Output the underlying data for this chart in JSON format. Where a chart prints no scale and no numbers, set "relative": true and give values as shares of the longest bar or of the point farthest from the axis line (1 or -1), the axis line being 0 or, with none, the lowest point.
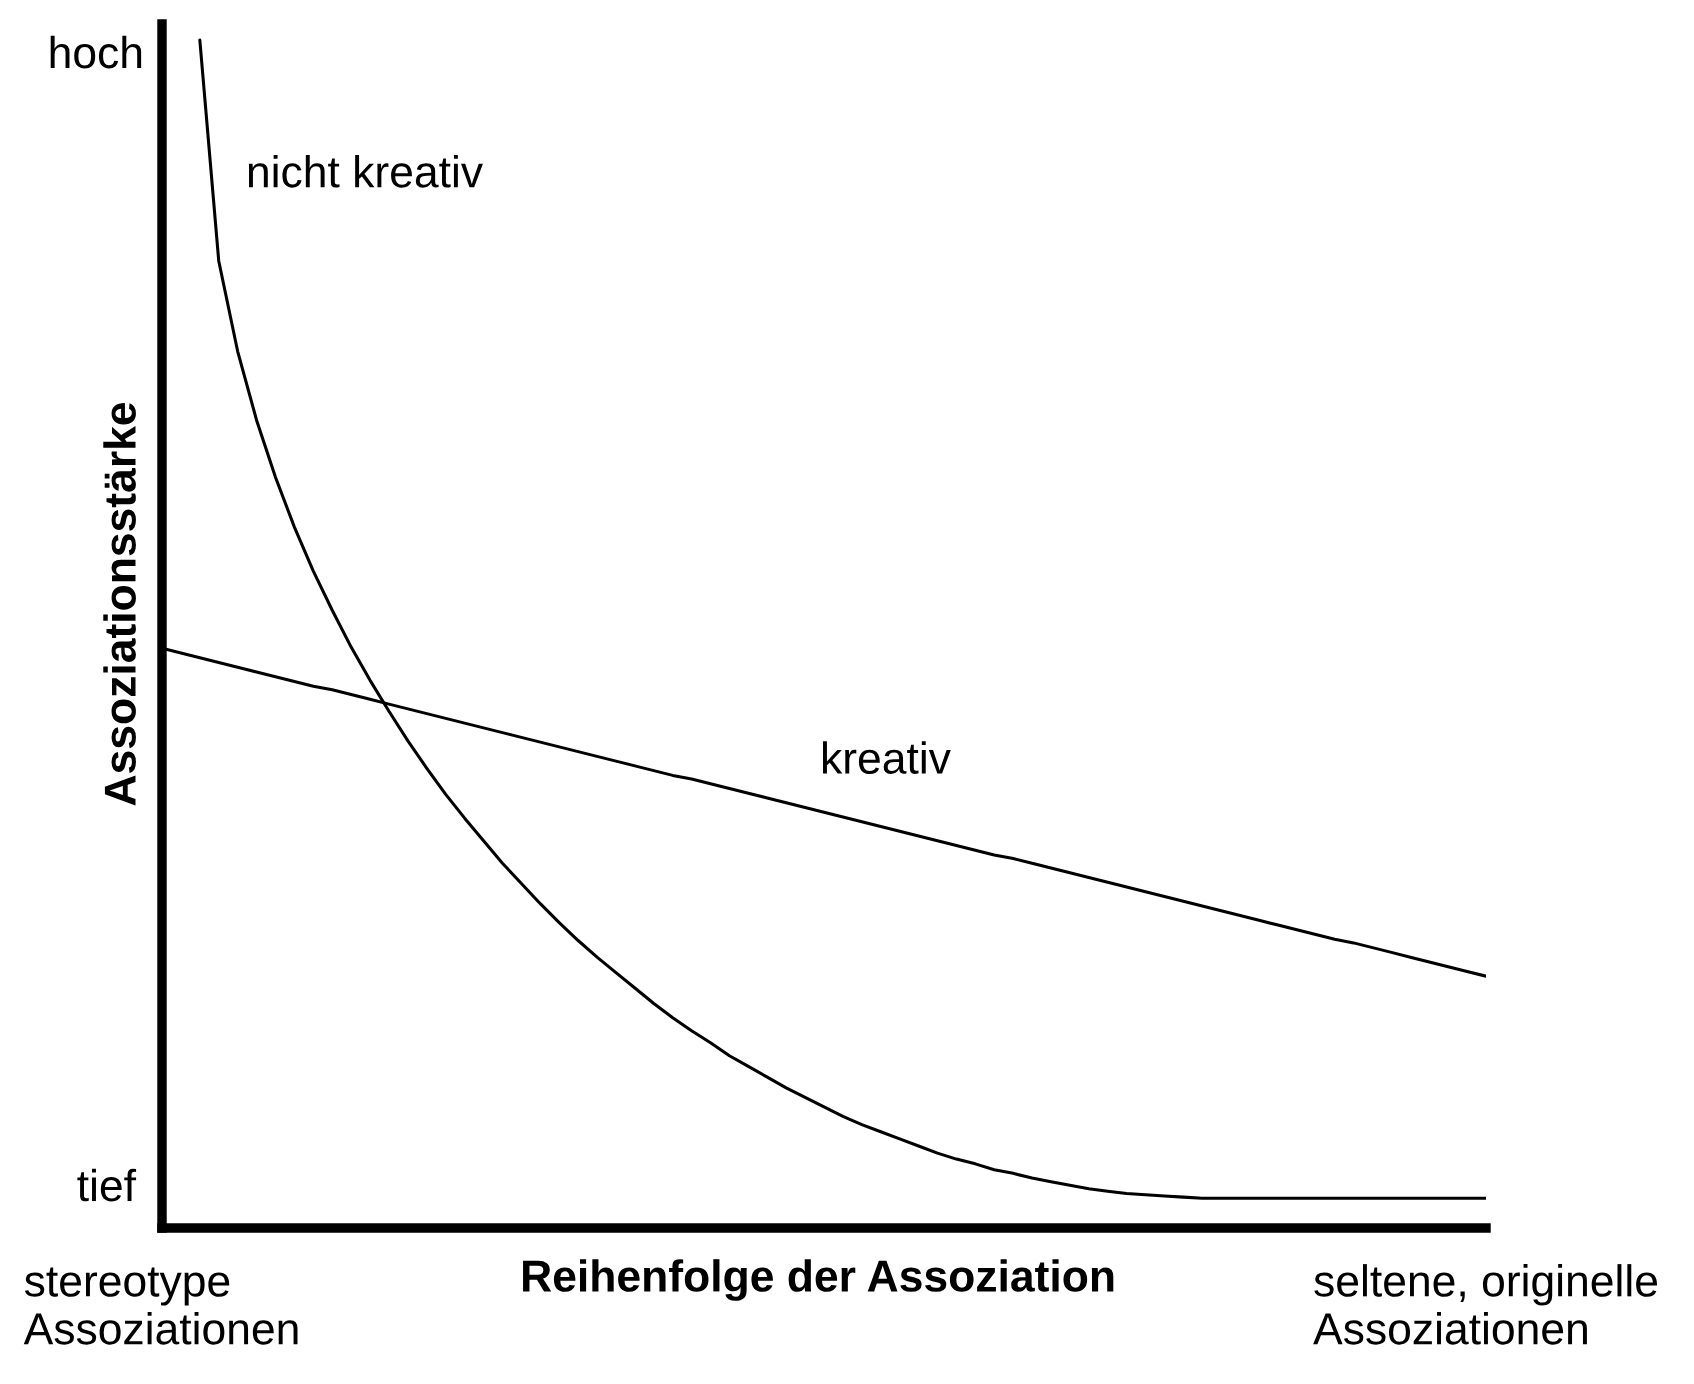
{
  "chart_data": {
    "type": "line",
    "relative": true,
    "xlabel": "Reihenfolge der Assoziation",
    "ylabel": "Assoziationsstärke",
    "annotations": [
      "hoch",
      "tief"
    ],
    "categories": [
      "stereotype\nAssoziationen",
      null,
      null,
      null,
      null,
      null,
      null,
      null,
      null,
      null,
      null,
      null,
      null,
      null,
      null,
      null,
      null,
      null,
      null,
      null,
      null,
      null,
      null,
      null,
      null,
      null,
      null,
      null,
      null,
      null,
      null,
      null,
      null,
      null,
      null,
      null,
      null,
      null,
      null,
      null,
      null,
      null,
      null,
      null,
      null,
      null,
      null,
      null,
      null,
      null,
      null,
      null,
      null,
      null,
      null,
      null,
      null,
      null,
      null,
      null,
      null,
      null,
      null,
      null,
      null,
      null,
      null,
      null,
      null,
      null,
      "seltene, originelle\nAssoziationen"
    ],
    "series": [
      {
        "name": "nicht kreativ",
        "color": "#000000",
        "values": [
          null,
          null,
          1.0,
          0.814,
          0.738,
          0.68,
          0.632,
          0.59,
          0.553,
          0.52,
          0.489,
          0.461,
          0.435,
          0.41,
          0.387,
          0.365,
          0.345,
          0.326,
          0.307,
          0.29,
          0.273,
          0.257,
          0.242,
          0.228,
          0.215,
          0.202,
          0.189,
          0.177,
          0.166,
          0.156,
          0.145,
          0.136,
          0.127,
          0.118,
          0.11,
          0.102,
          0.094,
          0.087,
          0.081,
          0.075,
          0.069,
          0.063,
          0.058,
          0.054,
          0.049,
          0.046,
          0.042,
          0.039,
          0.036,
          0.033,
          0.031,
          0.029,
          0.028,
          0.027,
          0.026,
          0.025,
          0.025,
          0.025,
          0.025,
          0.025,
          0.025,
          0.025,
          0.025,
          0.025,
          0.025,
          0.025,
          0.025,
          0.025,
          0.025,
          0.025,
          0.025
        ]
      },
      {
        "name": "kreativ",
        "color": "#000000",
        "values": [
          0.488,
          0.484,
          0.48,
          0.476,
          0.472,
          0.468,
          0.464,
          0.46,
          0.456,
          0.453,
          0.449,
          0.445,
          0.441,
          0.437,
          0.433,
          0.429,
          0.425,
          0.421,
          0.417,
          0.413,
          0.409,
          0.405,
          0.401,
          0.397,
          0.393,
          0.389,
          0.385,
          0.381,
          0.378,
          0.374,
          0.37,
          0.366,
          0.362,
          0.358,
          0.354,
          0.35,
          0.346,
          0.342,
          0.338,
          0.334,
          0.33,
          0.326,
          0.322,
          0.318,
          0.314,
          0.311,
          0.307,
          0.303,
          0.299,
          0.295,
          0.291,
          0.287,
          0.283,
          0.279,
          0.275,
          0.271,
          0.267,
          0.263,
          0.259,
          0.255,
          0.251,
          0.247,
          0.243,
          0.24,
          0.236,
          0.232,
          0.228,
          0.224,
          0.22,
          0.216,
          0.212
        ]
      }
    ]
  }
}
